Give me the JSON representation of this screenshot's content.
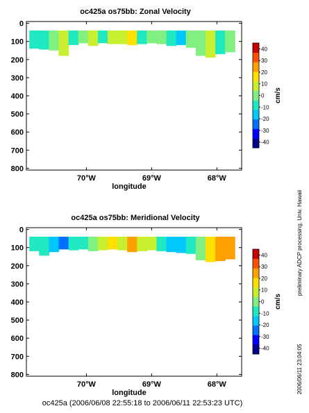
{
  "footer": "oc425a (2006/06/08 22:55:18 to 2006/06/11 22:53:23 UTC)",
  "side_note": "preliminary ADCP processing,  Univ. Hawaii",
  "side_date": "2006/06/11 23:04:05",
  "colors": {
    "scale": [
      "#00008c",
      "#0000ff",
      "#0070ff",
      "#00c8ff",
      "#20e8c0",
      "#80f080",
      "#c8f030",
      "#ffe000",
      "#ffa000",
      "#ff5000",
      "#c80000"
    ]
  },
  "chart_data": [
    {
      "type": "heatmap",
      "title": "oc425a os75bb: Zonal Velocity",
      "xlabel": "longitude",
      "ylabel": "",
      "x_ticks": [
        -70,
        -69,
        -68
      ],
      "x_tick_labels": [
        "70°W",
        "69°W",
        "68°W"
      ],
      "xlim": [
        -70.92,
        -67.62
      ],
      "y_ticks": [
        0,
        100,
        200,
        300,
        400,
        500,
        600,
        700,
        800
      ],
      "y_tick_labels": [
        "0",
        "100",
        "200",
        "300",
        "400",
        "500",
        "600",
        "700",
        "800"
      ],
      "ylim": [
        810,
        -10
      ],
      "y_direction": "depth increasing downward",
      "colorbar": {
        "label": "cm/s",
        "range": [
          -45,
          45
        ],
        "ticks": [
          40,
          30,
          20,
          10,
          0,
          -10,
          -20,
          -30,
          -40
        ],
        "tick_labels": [
          "40",
          "30",
          "20",
          "10",
          "0",
          "-10",
          "-20",
          "-30",
          "-40"
        ]
      },
      "data_depth_top": 40,
      "bottom_depth": [
        140,
        145,
        150,
        180,
        120,
        110,
        125,
        110,
        115,
        115,
        120,
        115,
        110,
        115,
        125,
        120,
        135,
        180,
        190,
        170,
        160
      ],
      "x": [
        -70.8,
        -70.65,
        -70.5,
        -70.35,
        -70.2,
        -70.05,
        -69.9,
        -69.75,
        -69.6,
        -69.45,
        -69.3,
        -69.15,
        -69.0,
        -68.85,
        -68.7,
        -68.55,
        -68.4,
        -68.25,
        -68.1,
        -67.95,
        -67.8
      ],
      "values": [
        -10,
        -5,
        0,
        5,
        -12,
        2,
        8,
        -5,
        6,
        10,
        15,
        -8,
        4,
        2,
        -6,
        -14,
        -4,
        2,
        6,
        -10,
        0
      ]
    },
    {
      "type": "heatmap",
      "title": "oc425a os75bb: Meridional Velocity",
      "xlabel": "longitude",
      "ylabel": "",
      "x_ticks": [
        -70,
        -69,
        -68
      ],
      "x_tick_labels": [
        "70°W",
        "69°W",
        "68°W"
      ],
      "xlim": [
        -70.92,
        -67.62
      ],
      "y_ticks": [
        0,
        100,
        200,
        300,
        400,
        500,
        600,
        700,
        800
      ],
      "y_tick_labels": [
        "0",
        "100",
        "200",
        "300",
        "400",
        "500",
        "600",
        "700",
        "800"
      ],
      "ylim": [
        810,
        -10
      ],
      "y_direction": "depth increasing downward",
      "colorbar": {
        "label": "cm/s",
        "range": [
          -45,
          45
        ],
        "ticks": [
          40,
          30,
          20,
          10,
          0,
          -10,
          -20,
          -30,
          -40
        ],
        "tick_labels": [
          "40",
          "30",
          "20",
          "10",
          "0",
          "-10",
          "-20",
          "-30",
          "-40"
        ]
      },
      "data_depth_top": 40,
      "bottom_depth": [
        120,
        145,
        125,
        110,
        115,
        110,
        120,
        115,
        110,
        115,
        125,
        120,
        115,
        120,
        125,
        130,
        135,
        170,
        180,
        175,
        165
      ],
      "x": [
        -70.8,
        -70.65,
        -70.5,
        -70.35,
        -70.2,
        -70.05,
        -69.9,
        -69.75,
        -69.6,
        -69.45,
        -69.3,
        -69.15,
        -69.0,
        -68.85,
        -68.7,
        -68.55,
        -68.4,
        -68.25,
        -68.1,
        -67.95,
        -67.8
      ],
      "values": [
        -5,
        -8,
        -15,
        -22,
        -12,
        -6,
        4,
        12,
        18,
        10,
        25,
        5,
        8,
        -12,
        -20,
        -16,
        -6,
        4,
        14,
        24,
        28
      ]
    }
  ]
}
